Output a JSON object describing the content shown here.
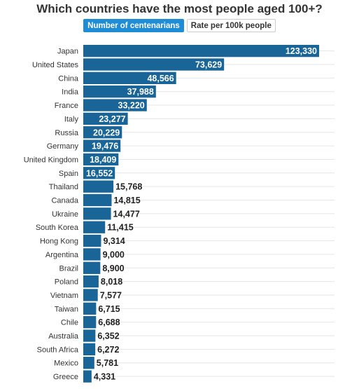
{
  "title": "Which countries have the most people aged 100+?",
  "tabs": [
    {
      "label": "Number of centenarians",
      "active": true
    },
    {
      "label": "Rate per 100k people",
      "active": false
    }
  ],
  "colors": {
    "bar": "#1a6597",
    "active_tab": "#1f8dd6",
    "label_inside": "#ffffff",
    "label_outside": "#222222",
    "gridline": "#e6e6e6"
  },
  "chart_data": {
    "type": "bar",
    "orientation": "horizontal",
    "categories": [
      "Japan",
      "United States",
      "China",
      "India",
      "France",
      "Italy",
      "Russia",
      "Germany",
      "United Kingdom",
      "Spain",
      "Thailand",
      "Canada",
      "Ukraine",
      "South Korea",
      "Hong Kong",
      "Argentina",
      "Brazil",
      "Poland",
      "Vietnam",
      "Taiwan",
      "Chile",
      "Australia",
      "South Africa",
      "Mexico",
      "Greece"
    ],
    "values": [
      123330,
      73629,
      48566,
      37988,
      33220,
      23277,
      20229,
      19476,
      18409,
      16552,
      15768,
      14815,
      14477,
      11415,
      9314,
      9000,
      8900,
      8018,
      7577,
      6715,
      6688,
      6352,
      6272,
      5781,
      4331
    ],
    "value_labels": [
      "123,330",
      "73,629",
      "48,566",
      "37,988",
      "33,220",
      "23,277",
      "20,229",
      "19,476",
      "18,409",
      "16,552",
      "15,768",
      "14,815",
      "14,477",
      "11,415",
      "9,314",
      "9,000",
      "8,900",
      "8,018",
      "7,577",
      "6,715",
      "6,688",
      "6,352",
      "6,272",
      "5,781",
      "4,331"
    ],
    "xlim": [
      0,
      123330
    ],
    "grid": true,
    "legend": "none"
  }
}
